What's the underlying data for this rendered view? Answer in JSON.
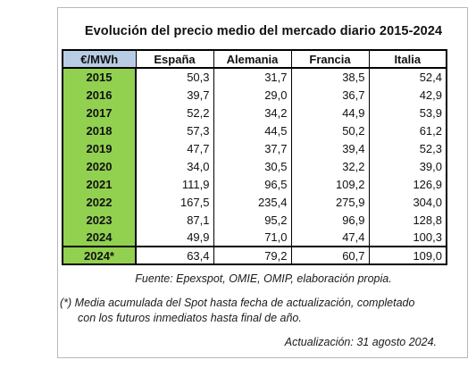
{
  "title": "Evolución del precio medio del mercado diario 2015-2024",
  "table": {
    "header": [
      "€/MWh",
      "España",
      "Alemania",
      "Francia",
      "Italia"
    ],
    "rows": [
      {
        "year": "2015",
        "values": [
          "50,3",
          "31,7",
          "38,5",
          "52,4"
        ]
      },
      {
        "year": "2016",
        "values": [
          "39,7",
          "29,0",
          "36,7",
          "42,9"
        ]
      },
      {
        "year": "2017",
        "values": [
          "52,2",
          "34,2",
          "44,9",
          "53,9"
        ]
      },
      {
        "year": "2018",
        "values": [
          "57,3",
          "44,5",
          "50,2",
          "61,2"
        ]
      },
      {
        "year": "2019",
        "values": [
          "47,7",
          "37,7",
          "39,4",
          "52,3"
        ]
      },
      {
        "year": "2020",
        "values": [
          "34,0",
          "30,5",
          "32,2",
          "39,0"
        ]
      },
      {
        "year": "2021",
        "values": [
          "111,9",
          "96,5",
          "109,2",
          "126,9"
        ]
      },
      {
        "year": "2022",
        "values": [
          "167,5",
          "235,4",
          "275,9",
          "304,0"
        ]
      },
      {
        "year": "2023",
        "values": [
          "87,1",
          "95,2",
          "96,9",
          "128,8"
        ]
      },
      {
        "year": "2024",
        "values": [
          "49,9",
          "71,0",
          "47,4",
          "100,3"
        ]
      },
      {
        "year": "2024*",
        "values": [
          "63,4",
          "79,2",
          "60,7",
          "109,0"
        ]
      }
    ]
  },
  "notes": {
    "source": "Fuente: Epexspot, OMIE, OMIP, elaboración propia.",
    "asterisk_line1": "(*) Media acumulada del Spot hasta fecha de actualización, completado",
    "asterisk_line2": "con los futuros inmediatos hasta final de año.",
    "updated": "Actualización: 31 agosto 2024."
  },
  "colors": {
    "year_cell": "#92d050",
    "header_unit_cell": "#b8cce4"
  }
}
